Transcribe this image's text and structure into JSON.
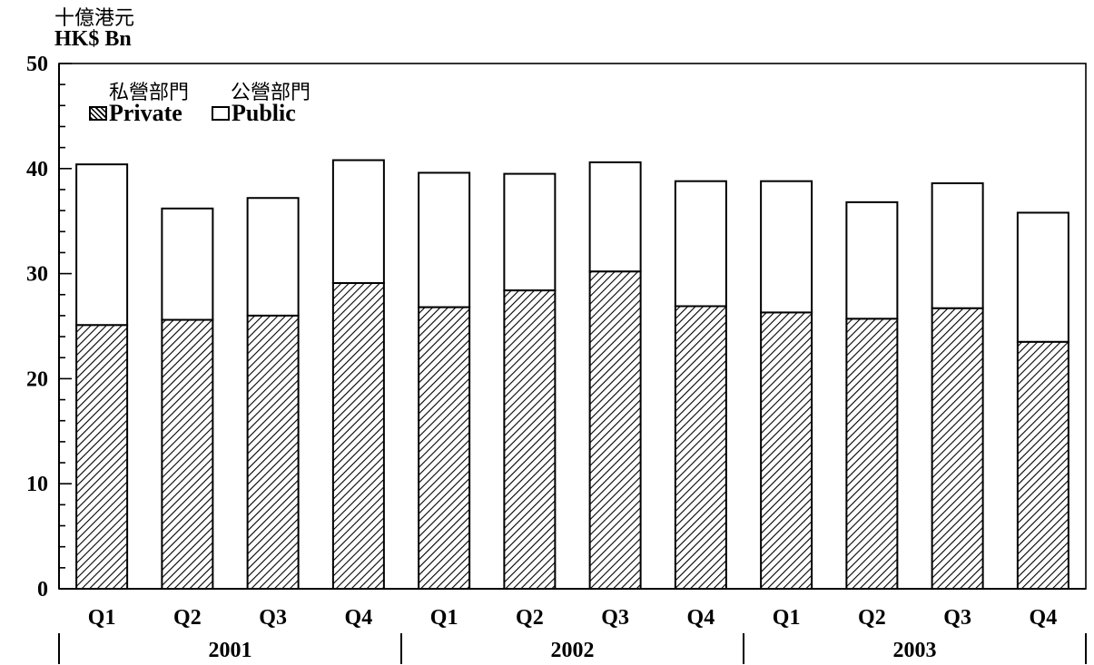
{
  "unit": {
    "zh": "十億港元",
    "en": "HK$ Bn"
  },
  "legend": {
    "private_zh": "私營部門",
    "public_zh": "公營部門",
    "private": "Private",
    "public": "Public"
  },
  "chart_data": {
    "type": "bar",
    "stacked": true,
    "categories": [
      "Q1",
      "Q2",
      "Q3",
      "Q4",
      "Q1",
      "Q2",
      "Q3",
      "Q4",
      "Q1",
      "Q2",
      "Q3",
      "Q4"
    ],
    "groups": [
      {
        "label": "2001",
        "count": 4
      },
      {
        "label": "2002",
        "count": 4
      },
      {
        "label": "2003",
        "count": 4
      }
    ],
    "series": [
      {
        "name": "Private",
        "values": [
          25.1,
          25.6,
          26.0,
          29.1,
          26.8,
          28.4,
          30.2,
          26.9,
          26.3,
          25.7,
          26.7,
          23.5
        ]
      },
      {
        "name": "Public",
        "values": [
          15.3,
          10.6,
          11.2,
          11.7,
          12.8,
          11.1,
          10.4,
          11.9,
          12.5,
          11.1,
          11.9,
          12.3
        ]
      }
    ],
    "yticks": [
      0,
      10,
      20,
      30,
      40,
      50
    ],
    "ylim": [
      0,
      50
    ],
    "grid": false,
    "legend_position": "top-left",
    "colors": {
      "axis": "#000000",
      "private_fill": "pattern-hatch",
      "public_fill": "#ffffff"
    }
  }
}
